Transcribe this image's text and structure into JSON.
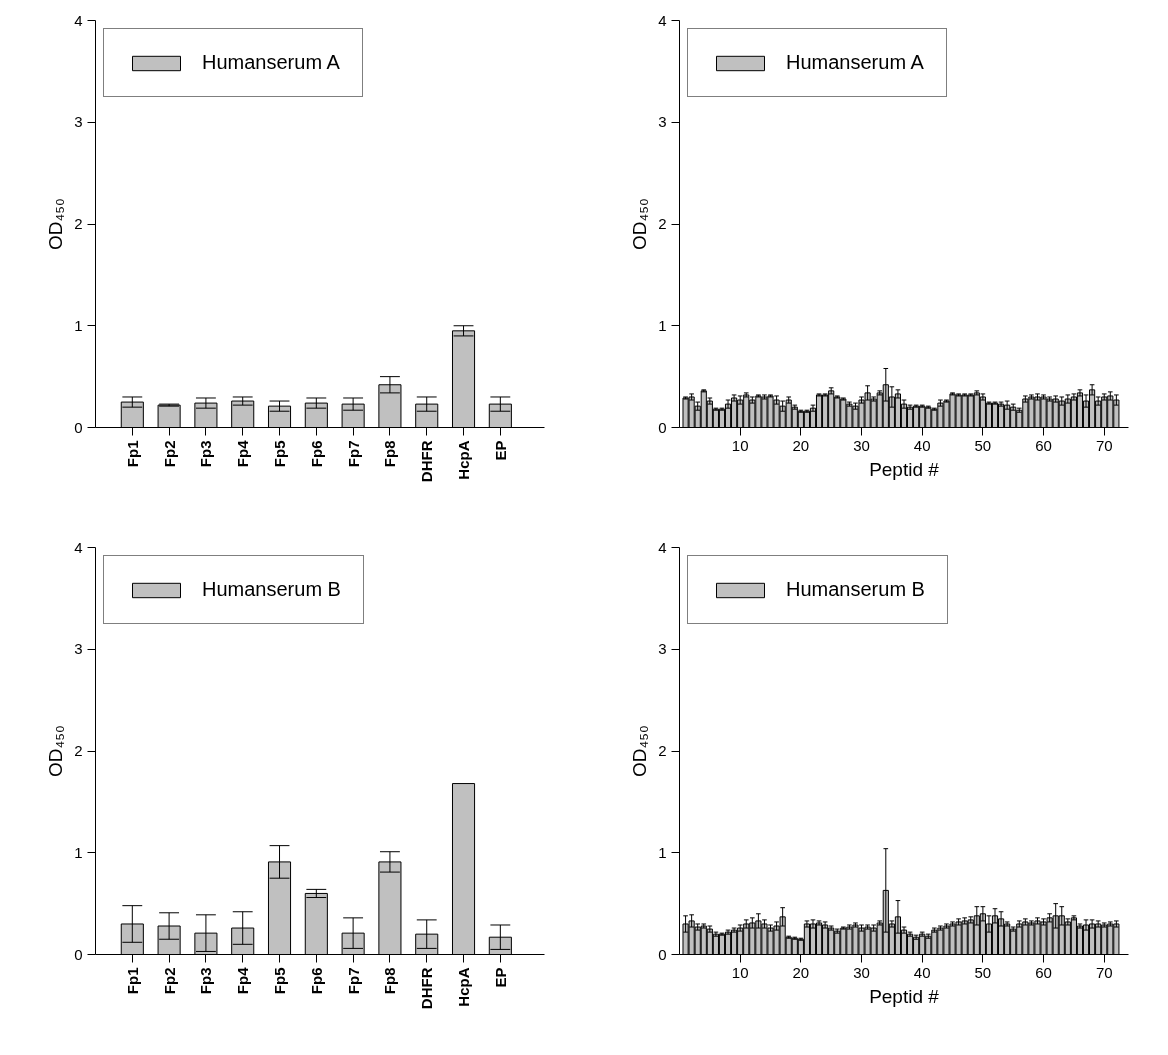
{
  "chart_data": [
    {
      "type": "bar",
      "ylabel": "OD₄₅₀",
      "categories": [
        "Fp1",
        "Fp2",
        "Fp3",
        "Fp4",
        "Fp5",
        "Fp6",
        "Fp7",
        "Fp8",
        "DHFR",
        "HcpA",
        "EP"
      ],
      "ylim": [
        0,
        4
      ],
      "yticks": [
        0,
        1,
        2,
        3,
        4
      ],
      "legend": "top left",
      "series": [
        {
          "name": "Humanserum A",
          "color": "#c0c0c0",
          "values": [
            0.25,
            0.22,
            0.24,
            0.26,
            0.21,
            0.24,
            0.23,
            0.42,
            0.23,
            0.95,
            0.23
          ],
          "errors": [
            0.05,
            0.01,
            0.05,
            0.04,
            0.05,
            0.05,
            0.06,
            0.08,
            0.07,
            0.05,
            0.07
          ]
        }
      ]
    },
    {
      "type": "bar",
      "ylabel": "OD₄₅₀",
      "xlabel": "Peptid #",
      "x": [
        1,
        2,
        3,
        4,
        5,
        6,
        7,
        8,
        9,
        10,
        11,
        12,
        13,
        14,
        15,
        16,
        17,
        18,
        19,
        20,
        21,
        22,
        23,
        24,
        25,
        26,
        27,
        28,
        29,
        30,
        31,
        32,
        33,
        34,
        35,
        36,
        37,
        38,
        39,
        40,
        41,
        42,
        43,
        44,
        45,
        46,
        47,
        48,
        49,
        50,
        51,
        52,
        53,
        54,
        55,
        56,
        57,
        58,
        59,
        60,
        61,
        62,
        63,
        64,
        65,
        66,
        67,
        68,
        69,
        70,
        71,
        72
      ],
      "xlim": [
        0,
        74
      ],
      "xticks": [
        10,
        20,
        30,
        40,
        50,
        60,
        70
      ],
      "ylim": [
        0,
        4
      ],
      "yticks": [
        0,
        1,
        2,
        3,
        4
      ],
      "legend": "top left",
      "series": [
        {
          "name": "Humanserum A",
          "color": "#c0c0c0",
          "values": [
            0.29,
            0.3,
            0.21,
            0.36,
            0.26,
            0.18,
            0.18,
            0.23,
            0.29,
            0.27,
            0.32,
            0.27,
            0.31,
            0.3,
            0.31,
            0.27,
            0.21,
            0.27,
            0.2,
            0.16,
            0.16,
            0.19,
            0.32,
            0.32,
            0.36,
            0.3,
            0.28,
            0.23,
            0.21,
            0.27,
            0.34,
            0.28,
            0.34,
            0.42,
            0.3,
            0.33,
            0.23,
            0.2,
            0.21,
            0.21,
            0.2,
            0.18,
            0.24,
            0.26,
            0.33,
            0.32,
            0.32,
            0.32,
            0.34,
            0.3,
            0.24,
            0.24,
            0.23,
            0.22,
            0.2,
            0.17,
            0.28,
            0.3,
            0.3,
            0.3,
            0.28,
            0.28,
            0.26,
            0.28,
            0.3,
            0.34,
            0.26,
            0.37,
            0.26,
            0.3,
            0.31,
            0.27
          ],
          "errors": [
            0.01,
            0.03,
            0.04,
            0.01,
            0.03,
            0.01,
            0.01,
            0.04,
            0.03,
            0.04,
            0.02,
            0.03,
            0.01,
            0.02,
            0.01,
            0.04,
            0.05,
            0.03,
            0.02,
            0.01,
            0.01,
            0.03,
            0.01,
            0.01,
            0.03,
            0.01,
            0.01,
            0.02,
            0.03,
            0.03,
            0.07,
            0.02,
            0.02,
            0.16,
            0.1,
            0.04,
            0.04,
            0.02,
            0.01,
            0.01,
            0.01,
            0.01,
            0.03,
            0.01,
            0.01,
            0.01,
            0.01,
            0.01,
            0.02,
            0.03,
            0.01,
            0.01,
            0.02,
            0.04,
            0.03,
            0.02,
            0.03,
            0.02,
            0.03,
            0.02,
            0.02,
            0.03,
            0.04,
            0.04,
            0.03,
            0.03,
            0.06,
            0.05,
            0.04,
            0.03,
            0.04,
            0.05
          ]
        }
      ]
    },
    {
      "type": "bar",
      "ylabel": "OD₄₅₀",
      "categories": [
        "Fp1",
        "Fp2",
        "Fp3",
        "Fp4",
        "Fp5",
        "Fp6",
        "Fp7",
        "Fp8",
        "DHFR",
        "HcpA",
        "EP"
      ],
      "ylim": [
        0,
        4
      ],
      "yticks": [
        0,
        1,
        2,
        3,
        4
      ],
      "legend": "top left",
      "series": [
        {
          "name": "Humanserum B",
          "color": "#c0c0c0",
          "values": [
            0.3,
            0.28,
            0.21,
            0.26,
            0.91,
            0.6,
            0.21,
            0.91,
            0.2,
            1.68,
            0.17
          ],
          "errors": [
            0.18,
            0.13,
            0.18,
            0.16,
            0.16,
            0.04,
            0.15,
            0.1,
            0.14,
            null,
            0.12
          ]
        }
      ]
    },
    {
      "type": "bar",
      "ylabel": "OD₄₅₀",
      "xlabel": "Peptid #",
      "x": [
        1,
        2,
        3,
        4,
        5,
        6,
        7,
        8,
        9,
        10,
        11,
        12,
        13,
        14,
        15,
        16,
        17,
        18,
        19,
        20,
        21,
        22,
        23,
        24,
        25,
        26,
        27,
        28,
        29,
        30,
        31,
        32,
        33,
        34,
        35,
        36,
        37,
        38,
        39,
        40,
        41,
        42,
        43,
        44,
        45,
        46,
        47,
        48,
        49,
        50,
        51,
        52,
        53,
        54,
        55,
        56,
        57,
        58,
        59,
        60,
        61,
        62,
        63,
        64,
        65,
        66,
        67,
        68,
        69,
        70,
        71,
        72
      ],
      "xlim": [
        0,
        74
      ],
      "xticks": [
        10,
        20,
        30,
        40,
        50,
        60,
        70
      ],
      "ylim": [
        0,
        4
      ],
      "yticks": [
        0,
        1,
        2,
        3,
        4
      ],
      "legend": "top left",
      "series": [
        {
          "name": "Humanserum B",
          "color": "#c0c0c0",
          "values": [
            0.3,
            0.33,
            0.27,
            0.28,
            0.25,
            0.2,
            0.2,
            0.22,
            0.24,
            0.26,
            0.3,
            0.31,
            0.33,
            0.3,
            0.26,
            0.28,
            0.37,
            0.17,
            0.16,
            0.15,
            0.3,
            0.3,
            0.31,
            0.29,
            0.26,
            0.23,
            0.26,
            0.27,
            0.29,
            0.26,
            0.27,
            0.26,
            0.31,
            0.63,
            0.3,
            0.37,
            0.24,
            0.2,
            0.17,
            0.2,
            0.18,
            0.24,
            0.26,
            0.28,
            0.3,
            0.32,
            0.33,
            0.34,
            0.38,
            0.4,
            0.3,
            0.38,
            0.35,
            0.3,
            0.25,
            0.3,
            0.32,
            0.31,
            0.33,
            0.32,
            0.36,
            0.38,
            0.38,
            0.32,
            0.36,
            0.28,
            0.29,
            0.3,
            0.3,
            0.29,
            0.3,
            0.3
          ],
          "errors": [
            0.08,
            0.06,
            0.03,
            0.02,
            0.03,
            0.02,
            0.01,
            0.02,
            0.02,
            0.03,
            0.04,
            0.05,
            0.07,
            0.04,
            0.03,
            0.04,
            0.09,
            0.01,
            0.01,
            0.01,
            0.03,
            0.04,
            0.02,
            0.03,
            0.02,
            0.02,
            0.01,
            0.02,
            0.02,
            0.03,
            0.02,
            0.03,
            0.02,
            0.41,
            0.03,
            0.16,
            0.03,
            0.02,
            0.02,
            0.02,
            0.02,
            0.02,
            0.02,
            0.02,
            0.02,
            0.03,
            0.03,
            0.03,
            0.09,
            0.07,
            0.08,
            0.07,
            0.07,
            0.02,
            0.02,
            0.03,
            0.03,
            0.02,
            0.03,
            0.03,
            0.04,
            0.12,
            0.09,
            0.03,
            0.02,
            0.02,
            0.05,
            0.04,
            0.03,
            0.02,
            0.02,
            0.03
          ]
        }
      ]
    }
  ]
}
